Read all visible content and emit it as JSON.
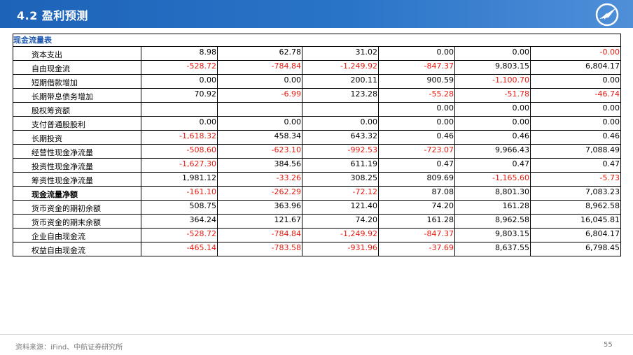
{
  "header": {
    "title": "4.2 盈利预测"
  },
  "table": {
    "caption": "现金流量表",
    "rows": [
      {
        "label": "资本支出",
        "values": [
          "8.98",
          "62.78",
          "31.02",
          "0.00",
          "0.00",
          "-0.00"
        ]
      },
      {
        "label": "自由现金流",
        "values": [
          "-528.72",
          "-784.84",
          "-1,249.92",
          "-847.37",
          "9,803.15",
          "6,804.17"
        ]
      },
      {
        "label": "短期借款增加",
        "values": [
          "0.00",
          "0.00",
          "200.11",
          "900.59",
          "-1,100.70",
          "0.00"
        ]
      },
      {
        "label": "长期带息债务增加",
        "values": [
          "70.92",
          "-6.99",
          "123.28",
          "-55.28",
          "-51.78",
          "-46.74"
        ]
      },
      {
        "label": "股权筹资额",
        "values": [
          "",
          "",
          "",
          "0.00",
          "0.00",
          "0.00"
        ]
      },
      {
        "label": "支付普通股股利",
        "values": [
          "0.00",
          "0.00",
          "0.00",
          "0.00",
          "0.00",
          "0.00"
        ]
      },
      {
        "label": "长期投资",
        "values": [
          "-1,618.32",
          "458.34",
          "643.32",
          "0.46",
          "0.46",
          "0.46"
        ]
      },
      {
        "label": "经营性现金净流量",
        "values": [
          "-508.60",
          "-623.10",
          "-992.53",
          "-723.07",
          "9,966.43",
          "7,088.49"
        ]
      },
      {
        "label": "投资性现金净流量",
        "values": [
          "-1,627.30",
          "384.56",
          "611.19",
          "0.47",
          "0.47",
          "0.47"
        ]
      },
      {
        "label": "筹资性现金净流量",
        "values": [
          "1,981.12",
          "-33.26",
          "308.25",
          "809.69",
          "-1,165.60",
          "-5.73"
        ]
      },
      {
        "label": "现金流量净额",
        "bold": true,
        "values": [
          "-161.10",
          "-262.29",
          "-72.12",
          "87.08",
          "8,801.30",
          "7,083.23"
        ]
      },
      {
        "label": "货币资金的期初余额",
        "values": [
          "508.75",
          "363.96",
          "121.40",
          "74.20",
          "161.28",
          "8,962.58"
        ]
      },
      {
        "label": "货币资金的期末余额",
        "values": [
          "364.24",
          "121.67",
          "74.20",
          "161.28",
          "8,962.58",
          "16,045.81"
        ]
      },
      {
        "label": "企业自由现金流",
        "values": [
          "-528.72",
          "-784.84",
          "-1,249.92",
          "-847.37",
          "9,803.15",
          "6,804.17"
        ]
      },
      {
        "label": "权益自由现金流",
        "values": [
          "-465.14",
          "-783.58",
          "-931.96",
          "-37.69",
          "8,637.55",
          "6,798.45"
        ]
      }
    ]
  },
  "footer": {
    "source": "资料来源：iFind、中航证券研究所",
    "page": "55"
  },
  "colors": {
    "header": "#1d63b8",
    "caption": "#1d57b0",
    "negative": "#e8190f"
  },
  "icons": {
    "logo": "company-plane-logo"
  }
}
